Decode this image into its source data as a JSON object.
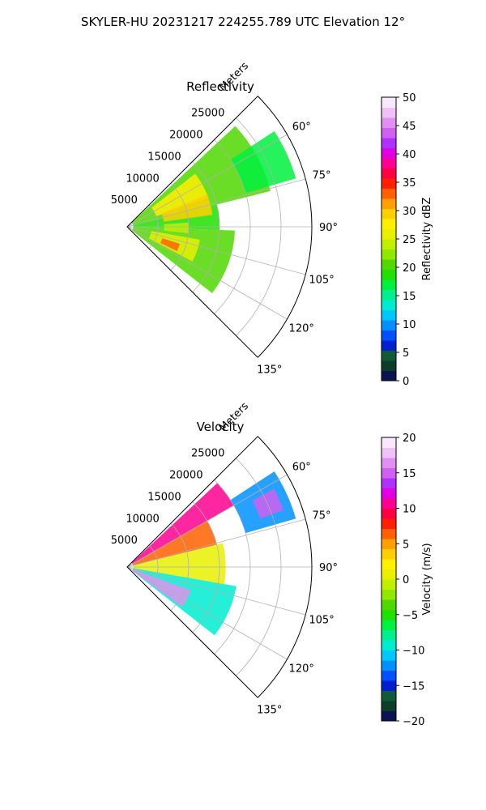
{
  "figure": {
    "suptitle": "SKYLER-HU  20231217  224255.789 UTC Elevation 12°"
  },
  "chart_data": [
    {
      "type": "heatmap",
      "projection": "polar-sector",
      "title": "Reflectivity",
      "radial_axis_label": "Meters",
      "radial_ticks": [
        "5000",
        "10000",
        "15000",
        "20000",
        "25000"
      ],
      "radial_tick_values": [
        5000,
        10000,
        15000,
        20000,
        25000
      ],
      "radial_range": [
        0,
        30000
      ],
      "azimuth_range_deg": [
        45,
        135
      ],
      "azimuth_ticks": [
        "60°",
        "75°",
        "90°",
        "105°",
        "120°",
        "135°"
      ],
      "azimuth_tick_values": [
        60,
        75,
        90,
        105,
        120,
        135
      ],
      "grid": true,
      "colorbar": {
        "label": "Reflectivity dBZ",
        "range": [
          0,
          50
        ],
        "ticks": [
          "0",
          "5",
          "10",
          "15",
          "20",
          "25",
          "30",
          "35",
          "40",
          "45",
          "50"
        ],
        "tick_values": [
          0,
          5,
          10,
          15,
          20,
          25,
          30,
          35,
          40,
          45,
          50
        ],
        "colors": [
          "#0a1450",
          "#0d3d2a",
          "#105a3a",
          "#0020d0",
          "#0050ff",
          "#0090ff",
          "#00c8ff",
          "#00ecd0",
          "#00f090",
          "#00f040",
          "#20e000",
          "#50d800",
          "#90e800",
          "#c0f000",
          "#e8f000",
          "#fff000",
          "#ffd000",
          "#ffa000",
          "#ff6000",
          "#ff2000",
          "#ff0040",
          "#ff0090",
          "#e000e0",
          "#b030ff",
          "#d060f0",
          "#e090f0",
          "#f0c0f8",
          "#f8e8fc"
        ]
      },
      "echo_regions": [
        {
          "az": [
            47,
            76
          ],
          "r": [
            1000,
            24000
          ],
          "level": 21
        },
        {
          "az": [
            76,
            92
          ],
          "r": [
            1000,
            15000
          ],
          "level": 19
        },
        {
          "az": [
            92,
            128
          ],
          "r": [
            1000,
            17500
          ],
          "level": 21
        },
        {
          "az": [
            57,
            74
          ],
          "r": [
            20000,
            28500
          ],
          "level": 17
        },
        {
          "az": [
            52,
            70
          ],
          "r": [
            5000,
            14000
          ],
          "level": 27
        },
        {
          "az": [
            100,
            118
          ],
          "r": [
            4000,
            12000
          ],
          "level": 25
        },
        {
          "az": [
            68,
            82
          ],
          "r": [
            6000,
            14000
          ],
          "level": 30
        },
        {
          "az": [
            86,
            96
          ],
          "r": [
            6000,
            10000
          ],
          "level": 24
        },
        {
          "az": [
            108,
            116
          ],
          "r": [
            6000,
            9000
          ],
          "level": 33
        }
      ]
    },
    {
      "type": "heatmap",
      "projection": "polar-sector",
      "title": "Velocity",
      "radial_axis_label": "Meters",
      "radial_ticks": [
        "5000",
        "10000",
        "15000",
        "20000",
        "25000"
      ],
      "radial_tick_values": [
        5000,
        10000,
        15000,
        20000,
        25000
      ],
      "radial_range": [
        0,
        30000
      ],
      "azimuth_range_deg": [
        45,
        135
      ],
      "azimuth_ticks": [
        "60°",
        "75°",
        "90°",
        "105°",
        "120°",
        "135°"
      ],
      "azimuth_tick_values": [
        60,
        75,
        90,
        105,
        120,
        135
      ],
      "grid": true,
      "colorbar": {
        "label": "Velocity (m/s)",
        "range": [
          -20,
          20
        ],
        "ticks": [
          "−20",
          "−15",
          "−10",
          "−5",
          "0",
          "5",
          "10",
          "15",
          "20"
        ],
        "tick_values": [
          -20,
          -15,
          -10,
          -5,
          0,
          5,
          10,
          15,
          20
        ],
        "colors": [
          "#0a1450",
          "#0d3d2a",
          "#105a3a",
          "#0020d0",
          "#0050ff",
          "#0090ff",
          "#00c8ff",
          "#00ecd0",
          "#00f090",
          "#00f040",
          "#20e000",
          "#50d800",
          "#90e800",
          "#c0f000",
          "#e8f000",
          "#fff000",
          "#ffd000",
          "#ffa000",
          "#ff6000",
          "#ff2000",
          "#ff0040",
          "#ff0090",
          "#e000e0",
          "#b030ff",
          "#d060f0",
          "#e090f0",
          "#f0c0f8",
          "#f8e8fc"
        ]
      },
      "echo_regions": [
        {
          "az": [
            47,
            60
          ],
          "r": [
            1000,
            20000
          ],
          "level": 11
        },
        {
          "az": [
            60,
            76
          ],
          "r": [
            1000,
            15000
          ],
          "level": 7
        },
        {
          "az": [
            76,
            90
          ],
          "r": [
            1000,
            16000
          ],
          "level": 1
        },
        {
          "az": [
            90,
            100
          ],
          "r": [
            1000,
            16000
          ],
          "level": 1
        },
        {
          "az": [
            100,
            128
          ],
          "r": [
            1000,
            18000
          ],
          "level": -9
        },
        {
          "az": [
            110,
            126
          ],
          "r": [
            1000,
            11000
          ],
          "level": 16
        },
        {
          "az": [
            57,
            74
          ],
          "r": [
            20000,
            28500
          ],
          "level": -12
        },
        {
          "az": [
            62,
            70
          ],
          "r": [
            23000,
            27000
          ],
          "level": 15
        }
      ]
    }
  ]
}
